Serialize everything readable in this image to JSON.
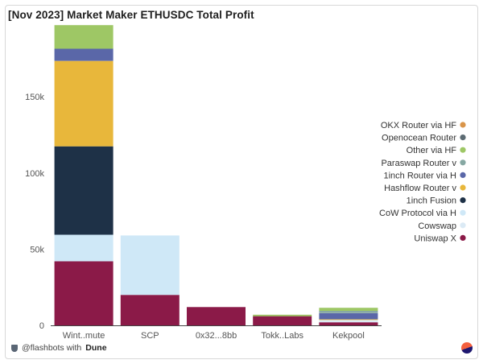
{
  "title": "[Nov 2023] Market Maker ETHUSDC Total Profit",
  "footer": {
    "handle": "@flashbots with",
    "brand": "Dune"
  },
  "chart_data": {
    "type": "bar",
    "stacked": true,
    "title": "[Nov 2023] Market Maker ETHUSDC Total Profit",
    "xlabel": "",
    "ylabel": "",
    "categories": [
      "Wint..mute",
      "SCP",
      "0x32...8bb",
      "Tokk..Labs",
      "Kekpool"
    ],
    "ylim": [
      0,
      195000
    ],
    "yticks": [
      0,
      50000,
      100000,
      150000
    ],
    "ytick_labels": [
      "0",
      "50k",
      "100k",
      "150k"
    ],
    "grid": false,
    "legend_position": "right",
    "series": [
      {
        "name": "Uniswap X",
        "color": "#8b1a48",
        "values": [
          42000,
          20000,
          12000,
          6000,
          2000
        ]
      },
      {
        "name": "Cowswap",
        "color": "#dbeaf5",
        "values": [
          0,
          0,
          0,
          0,
          1500
        ]
      },
      {
        "name": "CoW Protocol via HF",
        "color": "#cfe8f7",
        "values": [
          17500,
          39000,
          0,
          0,
          0
        ]
      },
      {
        "name": "1inch Fusion",
        "color": "#1e3147",
        "values": [
          58000,
          0,
          0,
          0,
          0
        ]
      },
      {
        "name": "Hashflow Router via HF",
        "color": "#e8b73b",
        "values": [
          56000,
          0,
          0,
          0,
          500
        ]
      },
      {
        "name": "1inch Router via HF",
        "color": "#5a67a8",
        "values": [
          8000,
          0,
          0,
          0,
          4000
        ]
      },
      {
        "name": "Paraswap Router via HF",
        "color": "#86a8a3",
        "values": [
          0,
          0,
          0,
          0,
          1500
        ]
      },
      {
        "name": "Other via HF",
        "color": "#9ec765",
        "values": [
          15500,
          0,
          0,
          1000,
          2000
        ]
      },
      {
        "name": "Openocean Router via HF",
        "color": "#5c6b73",
        "values": [
          0,
          0,
          0,
          0,
          0
        ]
      },
      {
        "name": "OKX Router via HF",
        "color": "#d9954a",
        "values": [
          0,
          0,
          0,
          0,
          0
        ]
      }
    ]
  },
  "legend": [
    {
      "label": "OKX Router via HF",
      "color": "#d9954a"
    },
    {
      "label": "Openocean Router",
      "color": "#5c6b73"
    },
    {
      "label": "Other via HF",
      "color": "#9ec765"
    },
    {
      "label": "Paraswap Router v",
      "color": "#86a8a3"
    },
    {
      "label": "1inch Router via H",
      "color": "#5a67a8"
    },
    {
      "label": "Hashflow Router v",
      "color": "#e8b73b"
    },
    {
      "label": "1inch Fusion",
      "color": "#1e3147"
    },
    {
      "label": "CoW Protocol via H",
      "color": "#cfe8f7"
    },
    {
      "label": "Cowswap",
      "color": "#dbeaf5"
    },
    {
      "label": "Uniswap X",
      "color": "#8b1a48"
    }
  ]
}
